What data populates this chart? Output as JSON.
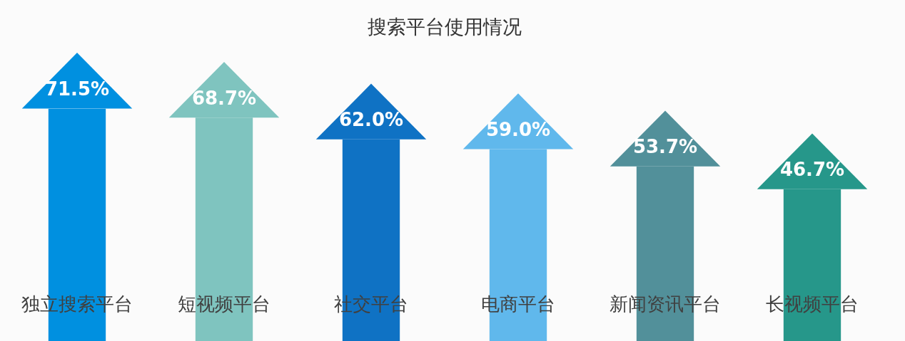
{
  "chart_data": {
    "type": "bar",
    "title": "搜索平台使用情况",
    "categories": [
      "独立搜索平台",
      "短视频平台",
      "社交平台",
      "电商平台",
      "新闻资讯平台",
      "长视频平台"
    ],
    "values": [
      71.5,
      68.7,
      62.0,
      59.0,
      53.7,
      46.7
    ],
    "colors": [
      "#0090e0",
      "#7fc4bf",
      "#0f72c4",
      "#60b8ec",
      "#52909a",
      "#26978a"
    ],
    "value_labels": [
      "71.5%",
      "68.7%",
      "62.0%",
      "59.0%",
      "53.7%",
      "46.7%"
    ],
    "legend": false
  }
}
